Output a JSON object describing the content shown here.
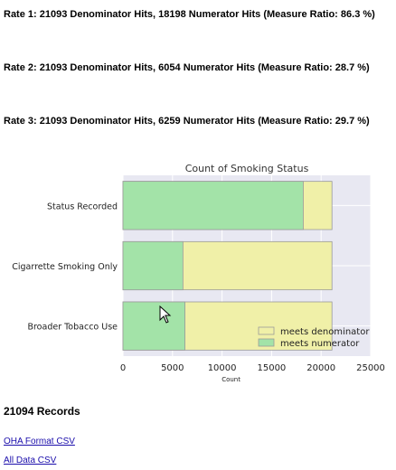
{
  "rates": [
    {
      "text": "Rate 1: 21093 Denominator Hits, 18198 Numerator Hits (Measure Ratio: 86.3 %)"
    },
    {
      "text": "Rate 2: 21093 Denominator Hits, 6054 Numerator Hits (Measure Ratio: 28.7 %)"
    },
    {
      "text": "Rate 3: 21093 Denominator Hits, 6259 Numerator Hits (Measure Ratio: 29.7 %)"
    }
  ],
  "chart_data": {
    "type": "bar",
    "orientation": "horizontal",
    "title": "Count of Smoking Status",
    "xlabel": "Count",
    "ylabel": "",
    "categories": [
      "Status Recorded",
      "Cigarrette Smoking Only",
      "Broader Tobacco Use"
    ],
    "series": [
      {
        "name": "meets denominator",
        "values": [
          21093,
          21093,
          21093
        ],
        "color": "#f0f0a8"
      },
      {
        "name": "meets numerator",
        "values": [
          18198,
          6054,
          6259
        ],
        "color": "#a3e3a8"
      }
    ],
    "xlim": [
      0,
      25000
    ],
    "xticks": [
      "0",
      "5000",
      "10000",
      "15000",
      "20000",
      "25000"
    ],
    "grid": true,
    "legend_position": "lower-right",
    "background": "#e8e8f2"
  },
  "records": "21094 Records",
  "links": {
    "oha_csv": "OHA Format CSV",
    "all_csv": "All Data CSV"
  }
}
